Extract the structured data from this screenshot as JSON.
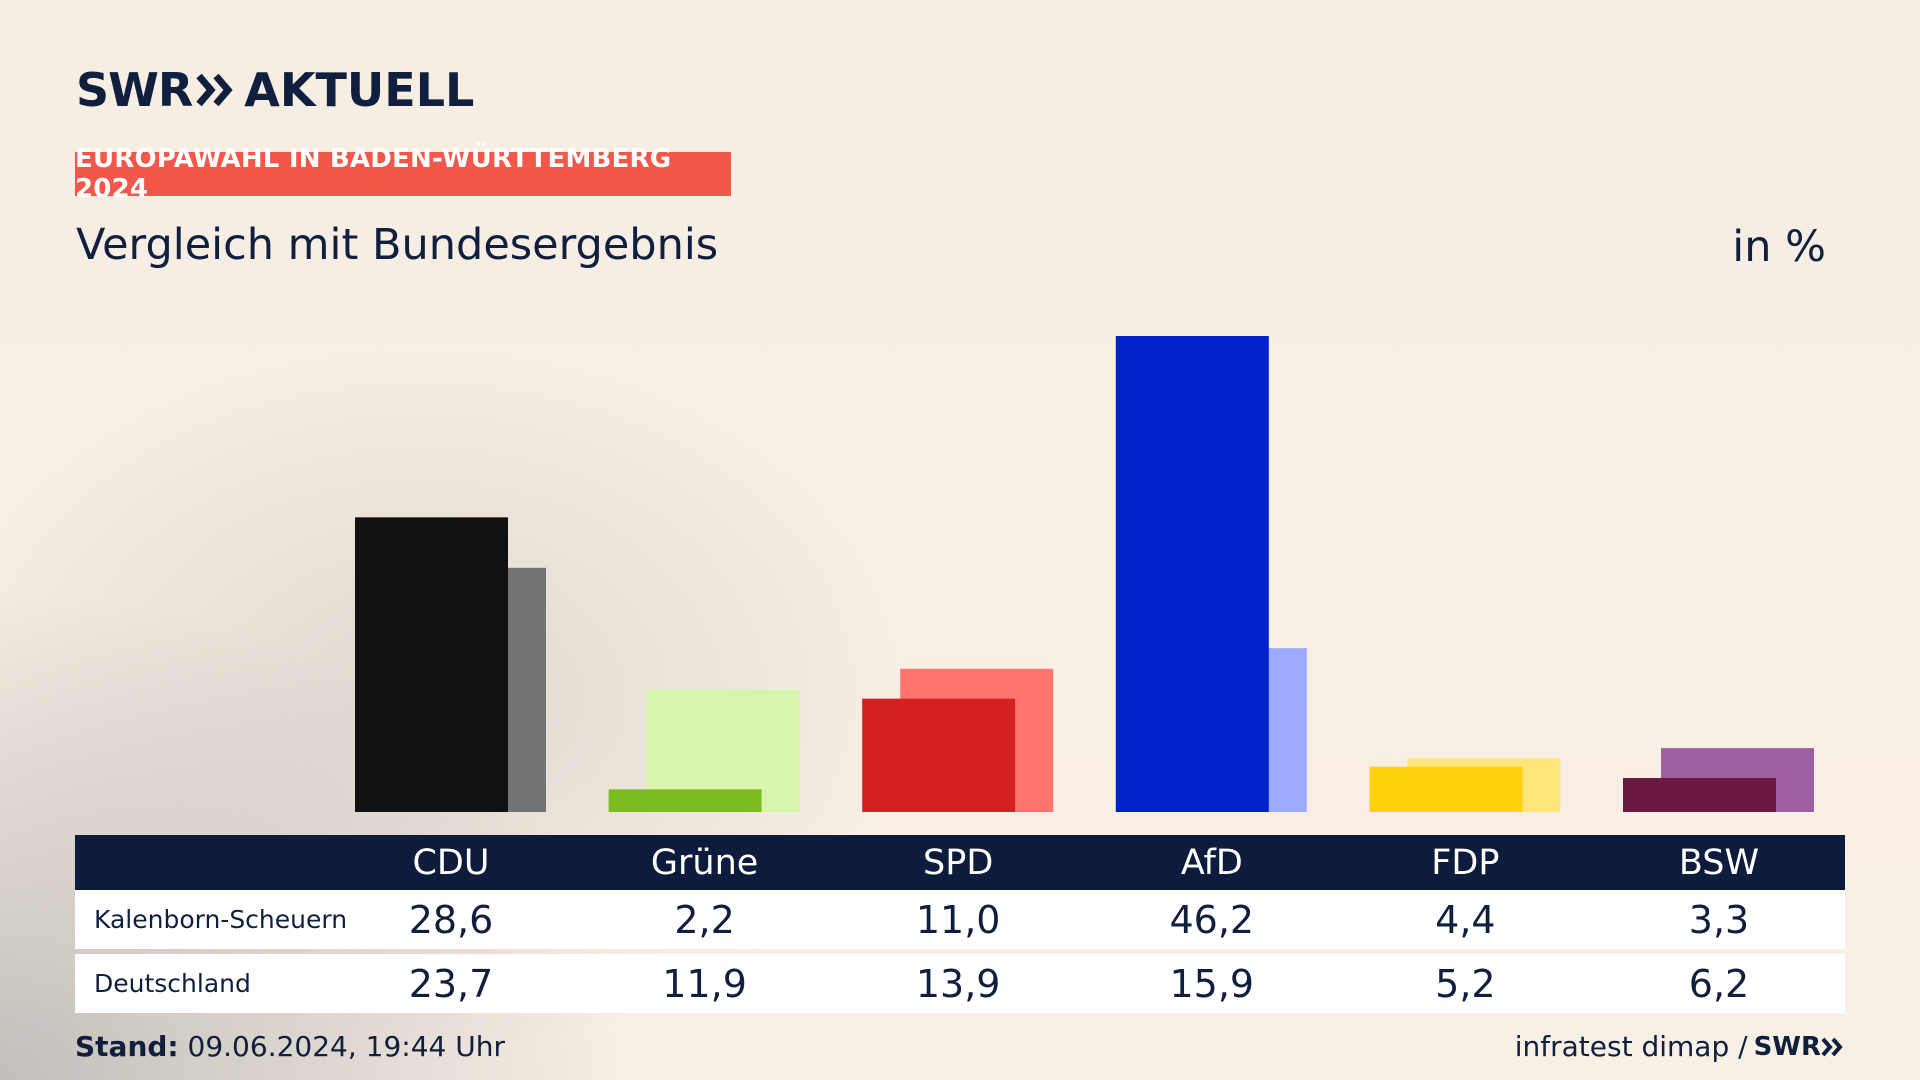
{
  "brand": {
    "swr": "SWR",
    "aktuell": "AKTUELL"
  },
  "tag": "EUROPAWAHL IN BADEN-WÜRTTEMBERG 2024",
  "subtitle": "Vergleich mit Bundesergebnis",
  "unit": "in %",
  "table": {
    "rows": [
      {
        "label": "Kalenborn-Scheuern"
      },
      {
        "label": "Deutschland"
      }
    ]
  },
  "footer": {
    "stand_label": "Stand:",
    "stand_value": "09.06.2024, 19:44 Uhr",
    "source": "infratest dimap",
    "separator": "/",
    "brand": "SWR"
  },
  "chart_data": {
    "type": "bar",
    "categories": [
      "CDU",
      "Grüne",
      "SPD",
      "AfD",
      "FDP",
      "BSW"
    ],
    "series": [
      {
        "name": "Kalenborn-Scheuern",
        "values": [
          28.6,
          2.2,
          11.0,
          46.2,
          4.4,
          3.3
        ],
        "labels": [
          "28,6",
          "2,2",
          "11,0",
          "46,2",
          "4,4",
          "3,3"
        ]
      },
      {
        "name": "Deutschland",
        "values": [
          23.7,
          11.9,
          13.9,
          15.9,
          5.2,
          6.2
        ],
        "labels": [
          "23,7",
          "11,9",
          "13,9",
          "15,9",
          "5,2",
          "6,2"
        ]
      }
    ],
    "colors": {
      "primary": [
        "#111111",
        "#7bbd21",
        "#d42020",
        "#0021c8",
        "#ffd20d",
        "#6b1940"
      ],
      "secondary": [
        "#737373",
        "#d9f5ab",
        "#ff7570",
        "#9eaaff",
        "#ffe57a",
        "#9e5ea2"
      ]
    },
    "ylim": [
      0,
      46.2
    ],
    "grid": false,
    "legend": "none"
  }
}
